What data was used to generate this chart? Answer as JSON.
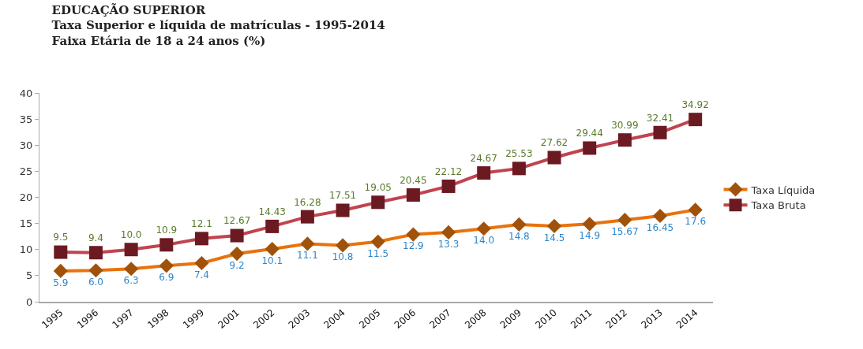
{
  "chart_data": {
    "type": "line",
    "title": "EDUCAÇÃO SUPERIOR",
    "subtitle": "Taxa Superior e líquida de matrículas - 1995-2014\nFaixa Etária de 18 a 24 anos (%)",
    "categories": [
      "1995",
      "1996",
      "1997",
      "1998",
      "1999",
      "2001",
      "2002",
      "2003",
      "2004",
      "2005",
      "2006",
      "2007",
      "2008",
      "2009",
      "2010",
      "2011",
      "2012",
      "2013",
      "2014"
    ],
    "series": [
      {
        "name": "Taxa Líquida",
        "color": "#e8730c",
        "marker": "diamond",
        "values": [
          5.9,
          6.0,
          6.3,
          6.9,
          7.4,
          9.2,
          10.1,
          11.1,
          10.8,
          11.5,
          12.9,
          13.3,
          14.0,
          14.8,
          14.5,
          14.9,
          15.67,
          16.45,
          17.6
        ],
        "value_labels": [
          "5.9",
          "6.0",
          "6.3",
          "6.9",
          "7.4",
          "9.2",
          "10.1",
          "11.1",
          "10.8",
          "11.5",
          "12.9",
          "13.3",
          "14.0",
          "14.8",
          "14.5",
          "14.9",
          "15.67",
          "16.45",
          "17.6"
        ]
      },
      {
        "name": "Taxa Bruta",
        "color": "#c0444e",
        "marker": "square",
        "values": [
          9.5,
          9.4,
          10.0,
          10.9,
          12.1,
          12.67,
          14.43,
          16.28,
          17.51,
          19.05,
          20.45,
          22.12,
          24.67,
          25.53,
          27.62,
          29.44,
          30.99,
          32.41,
          34.92
        ],
        "value_labels": [
          "9.5",
          "9.4",
          "10.0",
          "10.9",
          "12.1",
          "12.67",
          "14.43",
          "16.28",
          "17.51",
          "19.05",
          "20.45",
          "22.12",
          "24.67",
          "25.53",
          "27.62",
          "29.44",
          "30.99",
          "32.41",
          "34.92"
        ]
      }
    ],
    "ylim": [
      0,
      40
    ],
    "yticks": [
      0,
      5,
      10,
      15,
      20,
      25,
      30,
      35,
      40
    ],
    "legend": "right",
    "line_style": "solid"
  }
}
